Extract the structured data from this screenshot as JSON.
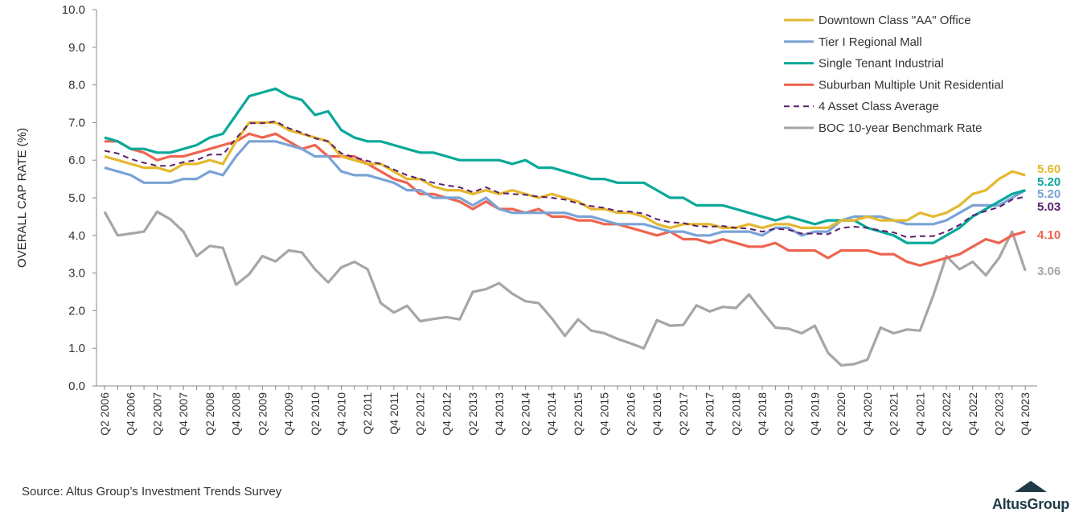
{
  "chart_data": {
    "type": "line",
    "title": "",
    "ylabel": "OVERALL CAP RATE (%)",
    "xlabel": "",
    "ylim": [
      0,
      10
    ],
    "yticks": [
      "0.0",
      "1.0",
      "2.0",
      "3.0",
      "4.0",
      "5.0",
      "6.0",
      "7.0",
      "8.0",
      "9.0",
      "10.0"
    ],
    "grid": false,
    "legend_position": "top-right",
    "start_quarter": "Q2 2006",
    "end_quarter": "Q4 2023",
    "xtick_labels": [
      "Q2 2006",
      "Q4 2006",
      "Q2 2007",
      "Q4 2007",
      "Q2 2008",
      "Q4 2008",
      "Q2 2009",
      "Q4 2009",
      "Q2 2010",
      "Q4 2010",
      "Q2 2011",
      "Q4 2011",
      "Q2 2012",
      "Q4 2012",
      "Q2 2013",
      "Q4 2013",
      "Q2 2014",
      "Q4 2014",
      "Q2 2015",
      "Q4 2015",
      "Q2 2016",
      "Q4 2016",
      "Q2 2017",
      "Q4 2017",
      "Q2 2018",
      "Q4 2018",
      "Q2 2019",
      "Q4 2019",
      "Q2 2020",
      "Q4 2020",
      "Q2 2021",
      "Q4 2021",
      "Q2 2022",
      "Q4 2022",
      "Q2 2023",
      "Q4 2023"
    ],
    "series": [
      {
        "name": "Downtown Class \"AA\" Office",
        "color": "#E4B82F",
        "dashed": false,
        "end_label": "5.60",
        "values": [
          6.1,
          6.0,
          5.9,
          5.8,
          5.8,
          5.7,
          5.9,
          5.9,
          6.0,
          5.9,
          6.5,
          7.0,
          7.0,
          7.0,
          6.8,
          6.7,
          6.6,
          6.5,
          6.1,
          6.0,
          5.9,
          5.9,
          5.7,
          5.5,
          5.5,
          5.3,
          5.2,
          5.2,
          5.1,
          5.2,
          5.1,
          5.2,
          5.1,
          5.0,
          5.1,
          5.0,
          4.9,
          4.7,
          4.7,
          4.6,
          4.6,
          4.5,
          4.3,
          4.2,
          4.3,
          4.3,
          4.3,
          4.2,
          4.2,
          4.3,
          4.2,
          4.3,
          4.3,
          4.2,
          4.2,
          4.2,
          4.4,
          4.4,
          4.5,
          4.4,
          4.4,
          4.4,
          4.6,
          4.5,
          4.6,
          4.8,
          5.1,
          5.2,
          5.5,
          5.7,
          5.6
        ]
      },
      {
        "name": "Tier I Regional Mall",
        "color": "#7AA3D6",
        "dashed": false,
        "end_label": "5.20",
        "values": [
          5.8,
          5.7,
          5.6,
          5.4,
          5.4,
          5.4,
          5.5,
          5.5,
          5.7,
          5.6,
          6.1,
          6.5,
          6.5,
          6.5,
          6.4,
          6.3,
          6.1,
          6.1,
          5.7,
          5.6,
          5.6,
          5.5,
          5.4,
          5.2,
          5.2,
          5.0,
          5.0,
          5.0,
          4.8,
          5.0,
          4.7,
          4.6,
          4.6,
          4.6,
          4.6,
          4.6,
          4.5,
          4.5,
          4.4,
          4.3,
          4.3,
          4.3,
          4.2,
          4.1,
          4.1,
          4.0,
          4.0,
          4.1,
          4.1,
          4.1,
          4.0,
          4.2,
          4.2,
          4.0,
          4.1,
          4.1,
          4.4,
          4.5,
          4.5,
          4.5,
          4.4,
          4.3,
          4.3,
          4.3,
          4.4,
          4.6,
          4.8,
          4.8,
          4.8,
          5.0,
          5.2
        ]
      },
      {
        "name": "Single Tenant Industrial",
        "color": "#0AA89A",
        "dashed": false,
        "end_label": "5.20",
        "values": [
          6.6,
          6.5,
          6.3,
          6.3,
          6.2,
          6.2,
          6.3,
          6.4,
          6.6,
          6.7,
          7.2,
          7.7,
          7.8,
          7.9,
          7.7,
          7.6,
          7.2,
          7.3,
          6.8,
          6.6,
          6.5,
          6.5,
          6.4,
          6.3,
          6.2,
          6.2,
          6.1,
          6.0,
          6.0,
          6.0,
          6.0,
          5.9,
          6.0,
          5.8,
          5.8,
          5.7,
          5.6,
          5.5,
          5.5,
          5.4,
          5.4,
          5.4,
          5.2,
          5.0,
          5.0,
          4.8,
          4.8,
          4.8,
          4.7,
          4.6,
          4.5,
          4.4,
          4.5,
          4.4,
          4.3,
          4.4,
          4.4,
          4.4,
          4.2,
          4.1,
          4.0,
          3.8,
          3.8,
          3.8,
          4.0,
          4.2,
          4.5,
          4.7,
          4.9,
          5.1,
          5.2
        ]
      },
      {
        "name": "Suburban Multiple Unit Residential",
        "color": "#EE6450",
        "dashed": false,
        "end_label": "4.10",
        "values": [
          6.5,
          6.5,
          6.3,
          6.2,
          6.0,
          6.1,
          6.1,
          6.2,
          6.3,
          6.4,
          6.5,
          6.7,
          6.6,
          6.7,
          6.5,
          6.3,
          6.4,
          6.1,
          6.1,
          6.1,
          5.9,
          5.7,
          5.5,
          5.4,
          5.1,
          5.1,
          5.0,
          4.9,
          4.7,
          4.9,
          4.7,
          4.7,
          4.6,
          4.7,
          4.5,
          4.5,
          4.4,
          4.4,
          4.3,
          4.3,
          4.2,
          4.1,
          4.0,
          4.1,
          3.9,
          3.9,
          3.8,
          3.9,
          3.8,
          3.7,
          3.7,
          3.8,
          3.6,
          3.6,
          3.6,
          3.4,
          3.6,
          3.6,
          3.6,
          3.5,
          3.5,
          3.3,
          3.2,
          3.3,
          3.4,
          3.5,
          3.7,
          3.9,
          3.8,
          4.0,
          4.1
        ]
      },
      {
        "name": "4 Asset Class Average",
        "color": "#5B1F6E",
        "dashed": true,
        "end_label": "5.03",
        "values": [
          6.25,
          6.18,
          6.03,
          5.93,
          5.85,
          5.85,
          5.95,
          6.0,
          6.15,
          6.15,
          6.58,
          6.98,
          6.98,
          7.03,
          6.85,
          6.73,
          6.58,
          6.5,
          6.18,
          6.08,
          5.98,
          5.9,
          5.75,
          5.6,
          5.5,
          5.4,
          5.33,
          5.28,
          5.15,
          5.28,
          5.13,
          5.1,
          5.08,
          5.03,
          5.0,
          4.95,
          4.85,
          4.78,
          4.73,
          4.65,
          4.63,
          4.58,
          4.43,
          4.35,
          4.33,
          4.25,
          4.23,
          4.25,
          4.2,
          4.18,
          4.1,
          4.18,
          4.15,
          4.05,
          4.05,
          4.03,
          4.2,
          4.23,
          4.2,
          4.13,
          4.08,
          3.95,
          3.98,
          3.98,
          4.1,
          4.28,
          4.53,
          4.65,
          4.75,
          4.95,
          5.03
        ]
      },
      {
        "name": "BOC 10-year Benchmark Rate",
        "color": "#A6A6A6",
        "dashed": false,
        "end_label": "3.06",
        "values": [
          4.63,
          4.0,
          4.05,
          4.1,
          4.63,
          4.43,
          4.1,
          3.45,
          3.72,
          3.67,
          2.69,
          2.97,
          3.45,
          3.31,
          3.6,
          3.55,
          3.1,
          2.75,
          3.15,
          3.3,
          3.1,
          2.2,
          1.95,
          2.13,
          1.72,
          1.78,
          1.83,
          1.77,
          2.5,
          2.57,
          2.73,
          2.45,
          2.25,
          2.2,
          1.8,
          1.33,
          1.77,
          1.47,
          1.4,
          1.25,
          1.13,
          1.0,
          1.75,
          1.6,
          1.62,
          2.14,
          1.98,
          2.1,
          2.07,
          2.43,
          1.98,
          1.55,
          1.52,
          1.4,
          1.6,
          0.88,
          0.55,
          0.58,
          0.7,
          1.55,
          1.4,
          1.5,
          1.47,
          2.4,
          3.45,
          3.1,
          3.3,
          2.94,
          3.4,
          4.1,
          3.06
        ]
      }
    ]
  },
  "source": "Source:  Altus Group’s Investment Trends Survey",
  "logo": {
    "text": "AltusGroup",
    "color": "#1F3B45"
  }
}
